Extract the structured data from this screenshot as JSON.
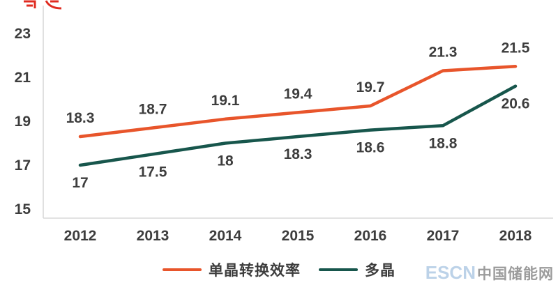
{
  "chart_data": {
    "type": "line",
    "title": "",
    "x": [
      "2012",
      "2013",
      "2014",
      "2015",
      "2016",
      "2017",
      "2018"
    ],
    "series": [
      {
        "name": "单晶转换效率",
        "values": [
          18.3,
          18.7,
          19.1,
          19.4,
          19.7,
          21.3,
          21.5
        ],
        "color": "#e8552b",
        "label_position": "above"
      },
      {
        "name": "多晶",
        "values": [
          17,
          17.5,
          18,
          18.3,
          18.6,
          18.8,
          20.6
        ],
        "color": "#17564c",
        "label_position": "below"
      }
    ],
    "point_labels": {
      "单晶转换效率": [
        "18.3",
        "18.7",
        "19.1",
        "19.4",
        "19.7",
        "21.3",
        "21.5"
      ],
      "多晶": [
        "17",
        "17.5",
        "18",
        "18.3",
        "18.6",
        "18.8",
        "20.6"
      ]
    },
    "ylim": [
      15,
      23
    ],
    "yticks": [
      "15",
      "17",
      "19",
      "21",
      "23"
    ],
    "xlabel": "",
    "ylabel": "",
    "grid": false,
    "legend_position": "bottom-center"
  },
  "legend": {
    "items": [
      {
        "label": "单晶转换效率"
      },
      {
        "label": "多晶"
      }
    ]
  },
  "watermark": {
    "brand": "ESCN",
    "name": "中国储能网"
  },
  "colors": {
    "axis": "#d9d9d9",
    "label_text": "#3d3d3d",
    "fragment_red": "#e02b20"
  }
}
